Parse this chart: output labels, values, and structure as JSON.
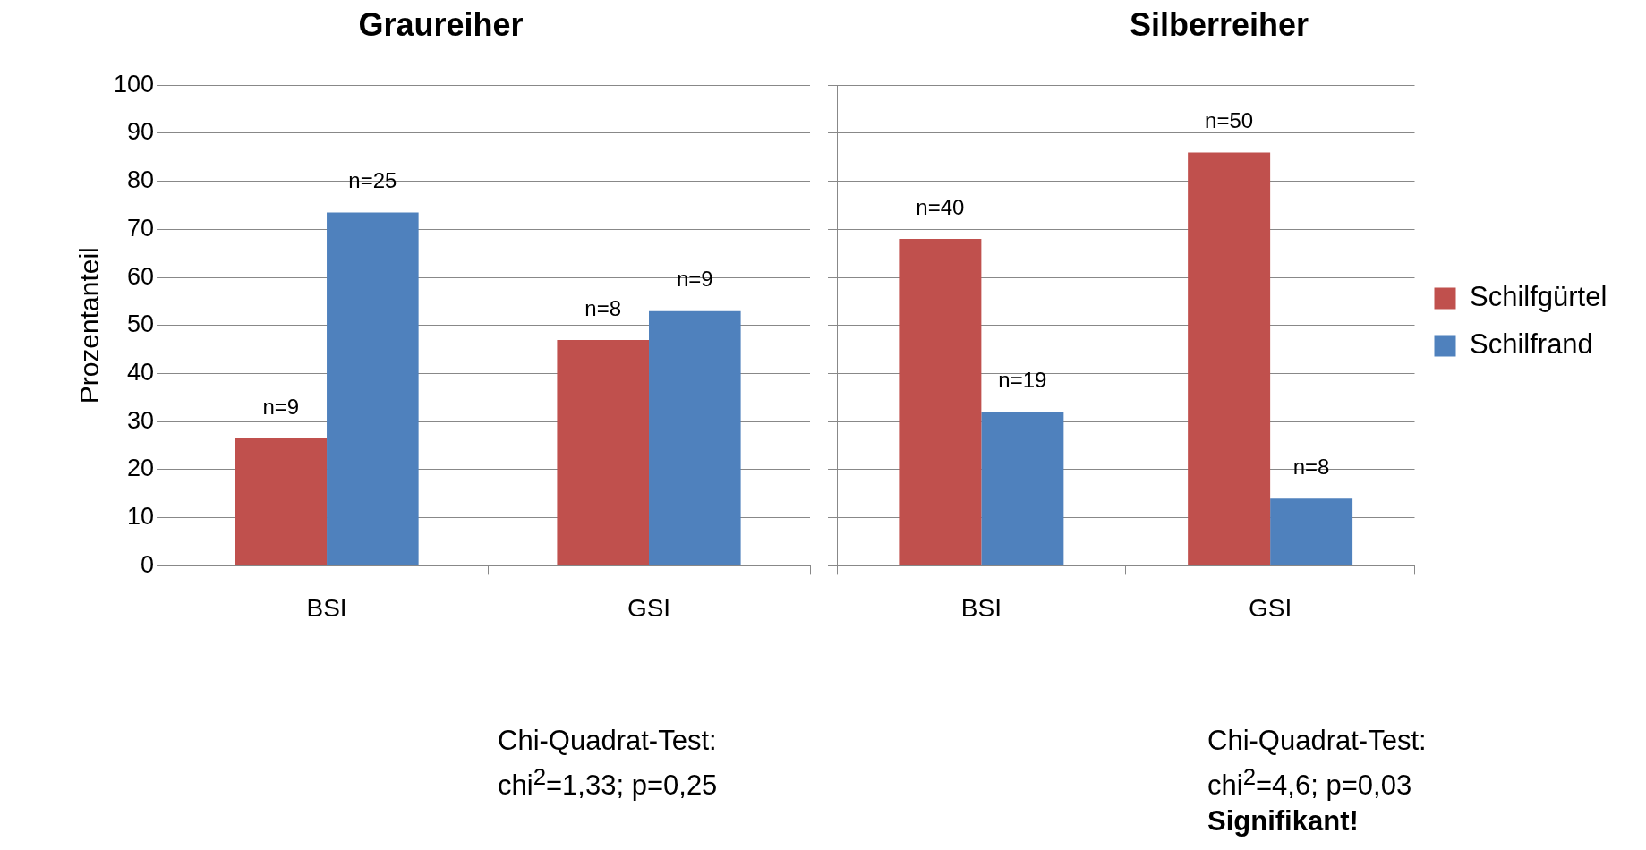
{
  "chart_data": [
    {
      "type": "bar",
      "title": "Graureiher",
      "ylabel": "Prozentanteil",
      "categories": [
        "BSI",
        "GSI"
      ],
      "series": [
        {
          "color": "#c0504d",
          "values": [
            26.5,
            47
          ]
        },
        {
          "color": "#4f81bd",
          "values": [
            73.5,
            53
          ]
        }
      ],
      "ylim": [
        0,
        100
      ],
      "yticks": [
        0,
        10,
        20,
        30,
        40,
        50,
        60,
        70,
        80,
        90,
        100
      ],
      "grid": "y",
      "legend": false,
      "annotations": [
        {
          "text": "n=9",
          "x": "BSI",
          "y": 26.5
        },
        {
          "text": "n=25",
          "x": "BSI",
          "y": 73.5
        },
        {
          "text": "n=8",
          "x": "GSI",
          "y": 47
        },
        {
          "text": "n=9",
          "x": "GSI",
          "y": 53
        },
        "Chi-Quadrat-Test:",
        "chi$^{2}$=1,33; p=0,25"
      ]
    },
    {
      "type": "bar",
      "title": "Silberreiher",
      "categories": [
        "BSI",
        "GSI"
      ],
      "series": [
        {
          "name": "Schilfgürtel",
          "color": "#c0504d",
          "values": [
            68,
            86
          ]
        },
        {
          "name": "Schilfrand",
          "color": "#4f81bd",
          "values": [
            32,
            14
          ]
        }
      ],
      "ylim": [
        0,
        100
      ],
      "yticks": [
        0,
        10,
        20,
        30,
        40,
        50,
        60,
        70,
        80,
        90,
        100
      ],
      "grid": "y",
      "legend": "right",
      "tick_labels": "x",
      "annotations": [
        {
          "text": "n=40",
          "x": "BSI",
          "y": 68
        },
        {
          "text": "n=19",
          "x": "BSI",
          "y": 32
        },
        {
          "text": "n=50",
          "x": "GSI",
          "y": 86
        },
        {
          "text": "n=8",
          "x": "GSI",
          "y": 14
        },
        "Chi-Quadrat-Test:",
        "chi$^{2}$=4,6; p=0,03",
        "Signifikant!"
      ]
    }
  ]
}
